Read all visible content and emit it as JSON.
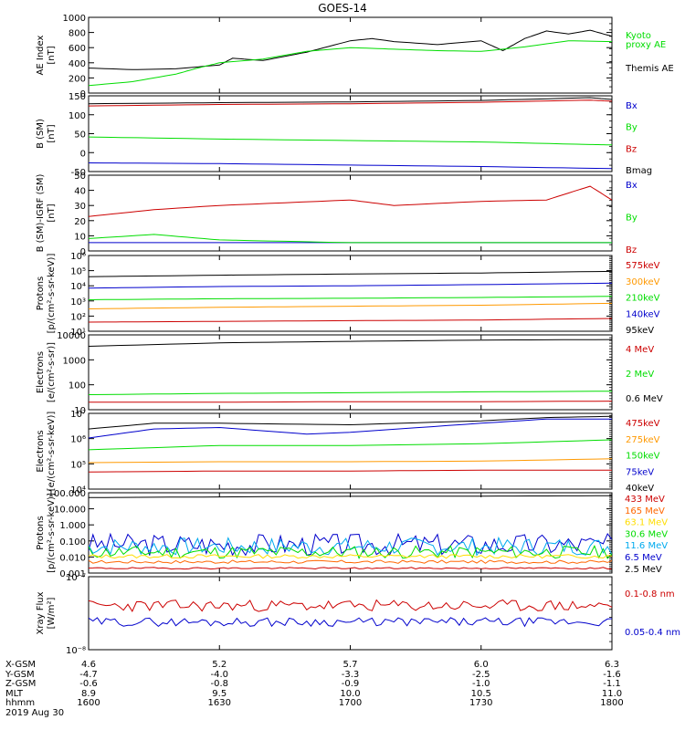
{
  "title": "GOES-14",
  "chart_data": {
    "type": "line",
    "title": "GOES-14",
    "x_range_ut": [
      "1600",
      "1800"
    ],
    "panels": [
      {
        "id": "ae",
        "ylabel": [
          "AE Index",
          "[nT]"
        ],
        "yscale": "linear",
        "ylim": [
          0,
          1000
        ],
        "yticks": [
          "0",
          "200",
          "400",
          "600",
          "800",
          "1000"
        ],
        "legend": [
          {
            "label": "Kyoto",
            "color": "#00dd00"
          },
          {
            "label": "proxy AE",
            "color": "#00dd00"
          },
          {
            "label": "Themis AE",
            "color": "#000000"
          }
        ],
        "series": [
          {
            "name": "Themis AE",
            "color": "#000000",
            "x": [
              1600,
              1610,
              1620,
              1630,
              1633,
              1640,
              1650,
              1700,
              1705,
              1710,
              1720,
              1730,
              1735,
              1740,
              1745,
              1750,
              1755,
              1800
            ],
            "y": [
              330,
              310,
              320,
              370,
              460,
              430,
              540,
              690,
              720,
              680,
              640,
              690,
              560,
              720,
              820,
              780,
              830,
              750
            ]
          },
          {
            "name": "Kyoto proxy AE",
            "color": "#00dd00",
            "x": [
              1600,
              1610,
              1620,
              1625,
              1630,
              1640,
              1650,
              1700,
              1710,
              1720,
              1730,
              1740,
              1750,
              1800
            ],
            "y": [
              100,
              150,
              250,
              330,
              400,
              450,
              550,
              600,
              580,
              560,
              550,
              610,
              690,
              680
            ]
          }
        ]
      },
      {
        "id": "bsm",
        "ylabel": [
          "B (SM)",
          "[nT]"
        ],
        "yscale": "linear",
        "ylim": [
          -60,
          150
        ],
        "yticks": [
          "-50",
          "0",
          "50",
          "100",
          "150"
        ],
        "legend": [
          {
            "label": "Bx",
            "color": "#0000cc"
          },
          {
            "label": "By",
            "color": "#00dd00"
          },
          {
            "label": "Bz",
            "color": "#cc0000"
          },
          {
            "label": "Bmag",
            "color": "#000000"
          }
        ],
        "series": [
          {
            "name": "Bx",
            "color": "#0000cc",
            "x": [
              1600,
              1630,
              1700,
              1730,
              1800
            ],
            "y": [
              -36,
              -38,
              -42,
              -46,
              -52
            ]
          },
          {
            "name": "By",
            "color": "#00dd00",
            "x": [
              1600,
              1630,
              1700,
              1730,
              1755,
              1800
            ],
            "y": [
              36,
              30,
              26,
              22,
              15,
              14
            ]
          },
          {
            "name": "Bz",
            "color": "#cc0000",
            "x": [
              1600,
              1630,
              1700,
              1730,
              1755,
              1800
            ],
            "y": [
              122,
              126,
              128,
              132,
              138,
              135
            ]
          },
          {
            "name": "Bmag",
            "color": "#000000",
            "x": [
              1600,
              1630,
              1700,
              1730,
              1755,
              1800
            ],
            "y": [
              128,
              131,
              133,
              137,
              145,
              140
            ]
          }
        ]
      },
      {
        "id": "bsm_igrf",
        "ylabel": [
          "B (SM)-IGRF (SM)",
          "[nT]"
        ],
        "yscale": "linear",
        "ylim": [
          -5,
          50
        ],
        "yticks": [
          "0",
          "10",
          "20",
          "30",
          "40",
          "50"
        ],
        "legend": [
          {
            "label": "Bx",
            "color": "#0000cc"
          },
          {
            "label": "By",
            "color": "#00dd00"
          },
          {
            "label": "Bz",
            "color": "#cc0000"
          }
        ],
        "series": [
          {
            "name": "Bx",
            "color": "#0000cc",
            "x": [
              1600,
              1630,
              1700,
              1730,
              1800
            ],
            "y": [
              1,
              1,
              1,
              1,
              1
            ]
          },
          {
            "name": "By",
            "color": "#00dd00",
            "x": [
              1600,
              1615,
              1630,
              1700,
              1730,
              1800
            ],
            "y": [
              4,
              7,
              3,
              1,
              1,
              1
            ]
          },
          {
            "name": "Bz",
            "color": "#cc0000",
            "x": [
              1600,
              1615,
              1630,
              1700,
              1710,
              1730,
              1745,
              1755,
              1800
            ],
            "y": [
              20,
              25,
              28,
              32,
              28,
              31,
              32,
              42,
              32
            ]
          }
        ]
      },
      {
        "id": "protons_low",
        "ylabel": [
          "Protons",
          "[p/(cm²-s-sr-keV)]"
        ],
        "yscale": "log",
        "ylim_log": [
          1,
          6
        ],
        "yticks": [
          "10¹",
          "10²",
          "10³",
          "10⁴",
          "10⁵",
          "10⁶"
        ],
        "legend": [
          {
            "label": "575keV",
            "color": "#cc0000"
          },
          {
            "label": "300keV",
            "color": "#ff9900"
          },
          {
            "label": "210keV",
            "color": "#00dd00"
          },
          {
            "label": "140keV",
            "color": "#0000cc"
          },
          {
            "label": "95keV",
            "color": "#000000"
          }
        ],
        "series": [
          {
            "name": "95keV",
            "color": "#000000",
            "x": [
              1600,
              1630,
              1700,
              1730,
              1800
            ],
            "y": [
              40000,
              50000,
              60000,
              70000,
              90000
            ]
          },
          {
            "name": "140keV",
            "color": "#0000cc",
            "x": [
              1600,
              1630,
              1700,
              1730,
              1800
            ],
            "y": [
              7000,
              9000,
              10000,
              12000,
              15000
            ]
          },
          {
            "name": "210keV",
            "color": "#00dd00",
            "x": [
              1600,
              1630,
              1700,
              1730,
              1800
            ],
            "y": [
              1200,
              1400,
              1500,
              1700,
              2000
            ]
          },
          {
            "name": "300keV",
            "color": "#ff9900",
            "x": [
              1600,
              1630,
              1700,
              1730,
              1800
            ],
            "y": [
              300,
              380,
              450,
              520,
              700
            ]
          },
          {
            "name": "575keV",
            "color": "#cc0000",
            "x": [
              1600,
              1630,
              1700,
              1730,
              1800
            ],
            "y": [
              40,
              45,
              50,
              55,
              70
            ]
          }
        ]
      },
      {
        "id": "electrons_mev",
        "ylabel": [
          "Electrons",
          "[e/(cm²-s-sr)]"
        ],
        "yscale": "log",
        "ylim_log": [
          1,
          4
        ],
        "yticks": [
          "10",
          "100",
          "1000",
          "10000"
        ],
        "legend": [
          {
            "label": "4 MeV",
            "color": "#cc0000"
          },
          {
            "label": "2 MeV",
            "color": "#00dd00"
          },
          {
            "label": "0.6 MeV",
            "color": "#000000"
          }
        ],
        "series": [
          {
            "name": "0.6 MeV",
            "color": "#000000",
            "x": [
              1600,
              1630,
              1700,
              1730,
              1800
            ],
            "y": [
              3500,
              4800,
              5500,
              6200,
              6500
            ]
          },
          {
            "name": "2 MeV",
            "color": "#00dd00",
            "x": [
              1600,
              1630,
              1700,
              1730,
              1800
            ],
            "y": [
              40,
              45,
              48,
              52,
              55
            ]
          },
          {
            "name": "4 MeV",
            "color": "#cc0000",
            "x": [
              1600,
              1630,
              1700,
              1730,
              1800
            ],
            "y": [
              20,
              20,
              21,
              21,
              22
            ]
          }
        ]
      },
      {
        "id": "electrons_kev",
        "ylabel": [
          "Electrons",
          "[e/(cm²-s-sr-keV)]"
        ],
        "yscale": "log",
        "ylim_log": [
          3,
          7
        ],
        "yticks": [
          "10⁴",
          "10⁵",
          "10⁶",
          "10⁷"
        ],
        "legend": [
          {
            "label": "475keV",
            "color": "#cc0000"
          },
          {
            "label": "275keV",
            "color": "#ff9900"
          },
          {
            "label": "150keV",
            "color": "#00dd00"
          },
          {
            "label": "75keV",
            "color": "#0000cc"
          },
          {
            "label": "40keV",
            "color": "#000000"
          }
        ],
        "series": [
          {
            "name": "40keV",
            "color": "#000000",
            "x": [
              1600,
              1615,
              1630,
              1700,
              1730,
              1745,
              1800
            ],
            "y": [
              1500000,
              3000000,
              3000000,
              2500000,
              4000000,
              6000000,
              7000000
            ]
          },
          {
            "name": "75keV",
            "color": "#0000cc",
            "x": [
              1600,
              1615,
              1630,
              1650,
              1700,
              1730,
              1745,
              1800
            ],
            "y": [
              500000,
              1500000,
              1800000,
              800000,
              1000000,
              3000000,
              5000000,
              5000000
            ]
          },
          {
            "name": "150keV",
            "color": "#00dd00",
            "x": [
              1600,
              1630,
              1700,
              1730,
              1800
            ],
            "y": [
              120000,
              200000,
              200000,
              250000,
              400000
            ]
          },
          {
            "name": "275keV",
            "color": "#ff9900",
            "x": [
              1600,
              1630,
              1700,
              1730,
              1800
            ],
            "y": [
              25000,
              28000,
              28000,
              30000,
              40000
            ]
          },
          {
            "name": "475keV",
            "color": "#cc0000",
            "x": [
              1600,
              1630,
              1700,
              1730,
              1800
            ],
            "y": [
              8000,
              9000,
              9000,
              10000,
              10000
            ]
          }
        ]
      },
      {
        "id": "protons_high",
        "ylabel": [
          "Protons",
          "[p/(cm²-s-sr-keV)]"
        ],
        "yscale": "log",
        "ylim_log": [
          -3,
          2
        ],
        "yticks": [
          "0.001",
          "0.010",
          "0.100",
          "1.000",
          "10.000",
          "100.000"
        ],
        "legend": [
          {
            "label": "433 MeV",
            "color": "#cc0000"
          },
          {
            "label": "165 MeV",
            "color": "#ff6600"
          },
          {
            "label": "63.1 MeV",
            "color": "#ffdd00"
          },
          {
            "label": "30.6 MeV",
            "color": "#00dd00"
          },
          {
            "label": "11.6 MeV",
            "color": "#00aaee"
          },
          {
            "label": "6.5 MeV",
            "color": "#0000cc"
          },
          {
            "label": "2.5 MeV",
            "color": "#000000"
          }
        ],
        "series": [
          {
            "name": "2.5 MeV",
            "color": "#000000",
            "x": [
              1600,
              1630,
              1700,
              1730,
              1800
            ],
            "y": [
              50,
              55,
              60,
              62,
              65
            ]
          },
          {
            "name": "6.5 MeV",
            "color": "#0000cc",
            "x": [
              1600,
              1800
            ],
            "y": [
              0.06,
              0.06
            ],
            "noise": 0.7,
            "seed": 3
          },
          {
            "name": "11.6 MeV",
            "color": "#00aaee",
            "x": [
              1600,
              1800
            ],
            "y": [
              0.045,
              0.045
            ],
            "noise": 0.55,
            "seed": 7
          },
          {
            "name": "30.6 MeV",
            "color": "#00dd00",
            "x": [
              1600,
              1800
            ],
            "y": [
              0.02,
              0.02
            ],
            "noise": 0.4,
            "seed": 11
          },
          {
            "name": "63.1 MeV",
            "color": "#ffdd00",
            "x": [
              1600,
              1800
            ],
            "y": [
              0.011,
              0.011
            ],
            "noise": 0.12,
            "seed": 13
          },
          {
            "name": "165 MeV",
            "color": "#ff6600",
            "x": [
              1600,
              1800
            ],
            "y": [
              0.005,
              0.005
            ],
            "noise": 0.1,
            "seed": 17
          },
          {
            "name": "433 MeV",
            "color": "#cc0000",
            "x": [
              1600,
              1800
            ],
            "y": [
              0.002,
              0.002
            ],
            "noise": 0.05,
            "seed": 19
          }
        ]
      },
      {
        "id": "xray",
        "ylabel": [
          "Xray Flux",
          "[W/m²]"
        ],
        "yscale": "log",
        "ylim_log": [
          -8,
          -7
        ],
        "yticks": [
          "10⁻⁸",
          "10⁻⁷"
        ],
        "legend": [
          {
            "label": "0.1-0.8 nm",
            "color": "#cc0000"
          },
          {
            "label": "0.05-0.4 nm",
            "color": "#0000cc"
          }
        ],
        "series": [
          {
            "name": "0.1-0.8 nm",
            "color": "#cc0000",
            "x": [
              1600,
              1800
            ],
            "y": [
              4e-08,
              4e-08
            ],
            "noise": 0.08,
            "seed": 23
          },
          {
            "name": "0.05-0.4 nm",
            "color": "#0000cc",
            "x": [
              1600,
              1800
            ],
            "y": [
              2.4e-08,
              2.4e-08
            ],
            "noise": 0.06,
            "seed": 29
          }
        ]
      }
    ],
    "x_axis": {
      "row_labels": [
        "X-GSM",
        "Y-GSM",
        "Z-GSM",
        "MLT",
        "hhmm"
      ],
      "ticks": [
        {
          "values": [
            "4.6",
            "-4.7",
            "-0.6",
            "8.9",
            "1600"
          ]
        },
        {
          "values": [
            "5.2",
            "-4.0",
            "-0.8",
            "9.5",
            "1630"
          ]
        },
        {
          "values": [
            "5.7",
            "-3.3",
            "-0.9",
            "10.0",
            "1700"
          ]
        },
        {
          "values": [
            "6.0",
            "-2.5",
            "-1.0",
            "10.5",
            "1730"
          ]
        },
        {
          "values": [
            "6.3",
            "-1.6",
            "-1.1",
            "11.0",
            "1800"
          ]
        }
      ],
      "date": "2019 Aug 30"
    }
  }
}
